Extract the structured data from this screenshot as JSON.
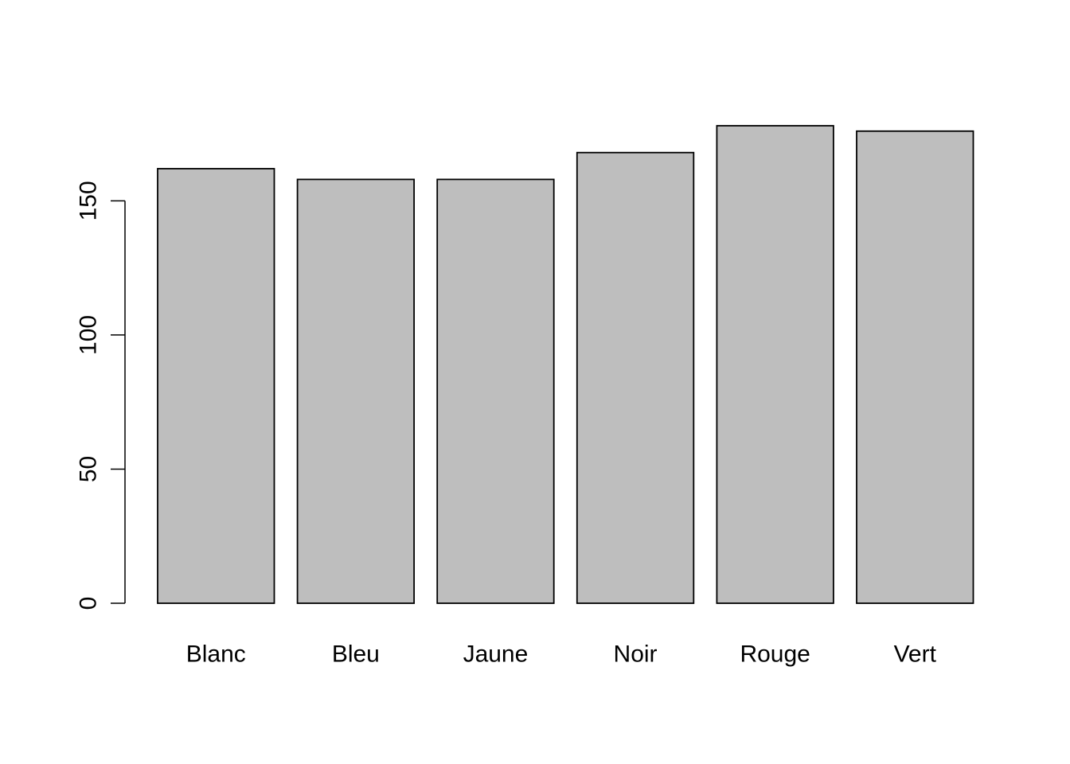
{
  "chart_data": {
    "type": "bar",
    "categories": [
      "Blanc",
      "Bleu",
      "Jaune",
      "Noir",
      "Rouge",
      "Vert"
    ],
    "values": [
      162,
      158,
      158,
      168,
      178,
      176
    ],
    "title": "",
    "xlabel": "",
    "ylabel": "",
    "ylim": [
      0,
      180
    ],
    "yticks": [
      0,
      50,
      100,
      150
    ],
    "bar_color": "#bebebe",
    "grid": false
  }
}
